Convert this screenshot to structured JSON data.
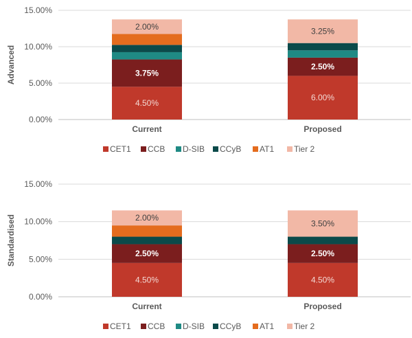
{
  "chart_data": [
    {
      "type": "bar",
      "stacked": true,
      "ylabel": "Advanced",
      "categories": [
        "Current",
        "Proposed"
      ],
      "ylim": [
        0,
        15
      ],
      "yticks": [
        "0.00%",
        "5.00%",
        "10.00%",
        "15.00%"
      ],
      "series": [
        {
          "name": "CET1",
          "color": "#C0392B",
          "values": [
            4.5,
            6.0
          ],
          "labels": [
            "4.50%",
            "6.00%"
          ]
        },
        {
          "name": "CCB",
          "color": "#7B1E1E",
          "values": [
            3.75,
            2.5
          ],
          "labels": [
            "3.75%",
            "2.50%"
          ]
        },
        {
          "name": "D-SIB",
          "color": "#1F8A84",
          "values": [
            1.0,
            1.0
          ],
          "labels": [
            "",
            ""
          ]
        },
        {
          "name": "CCyB",
          "color": "#0B4A4A",
          "values": [
            1.0,
            1.0
          ],
          "labels": [
            "",
            ""
          ]
        },
        {
          "name": "AT1",
          "color": "#E46C1E",
          "values": [
            1.5,
            0
          ],
          "labels": [
            "",
            ""
          ]
        },
        {
          "name": "Tier 2",
          "color": "#F2B8A6",
          "values": [
            2.0,
            3.25
          ],
          "labels": [
            "2.00%",
            "3.25%"
          ]
        }
      ],
      "legend": [
        "CET1",
        "CCB",
        "D-SIB",
        "CCyB",
        "AT1",
        "Tier 2"
      ]
    },
    {
      "type": "bar",
      "stacked": true,
      "ylabel": "Standardised",
      "categories": [
        "Current",
        "Proposed"
      ],
      "ylim": [
        0,
        15
      ],
      "yticks": [
        "0.00%",
        "5.00%",
        "10.00%",
        "15.00%"
      ],
      "series": [
        {
          "name": "CET1",
          "color": "#C0392B",
          "values": [
            4.5,
            4.5
          ],
          "labels": [
            "4.50%",
            "4.50%"
          ]
        },
        {
          "name": "CCB",
          "color": "#7B1E1E",
          "values": [
            2.5,
            2.5
          ],
          "labels": [
            "2.50%",
            "2.50%"
          ]
        },
        {
          "name": "D-SIB",
          "color": "#1F8A84",
          "values": [
            0,
            0
          ],
          "labels": [
            "",
            ""
          ]
        },
        {
          "name": "CCyB",
          "color": "#0B4A4A",
          "values": [
            1.0,
            1.0
          ],
          "labels": [
            "",
            ""
          ]
        },
        {
          "name": "AT1",
          "color": "#E46C1E",
          "values": [
            1.5,
            0
          ],
          "labels": [
            "",
            ""
          ]
        },
        {
          "name": "Tier 2",
          "color": "#F2B8A6",
          "values": [
            2.0,
            3.5
          ],
          "labels": [
            "2.00%",
            "3.50%"
          ]
        }
      ],
      "legend": [
        "CET1",
        "CCB",
        "D-SIB",
        "CCyB",
        "AT1",
        "Tier 2"
      ]
    }
  ]
}
